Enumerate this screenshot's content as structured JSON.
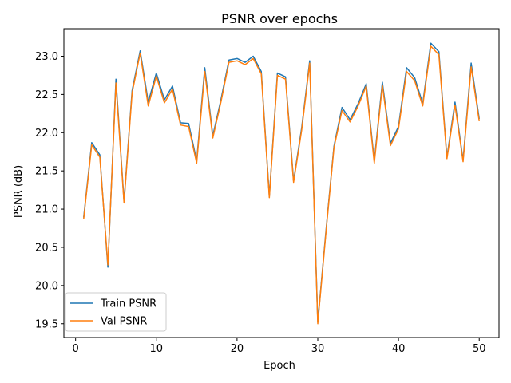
{
  "chart_data": {
    "type": "line",
    "title": "PSNR over epochs",
    "xlabel": "Epoch",
    "ylabel": "PSNR (dB)",
    "xlim": [
      -1.45,
      52.45
    ],
    "ylim": [
      19.32,
      23.36
    ],
    "xticks": [
      0,
      10,
      20,
      30,
      40,
      50
    ],
    "yticks": [
      19.5,
      20.0,
      20.5,
      21.0,
      21.5,
      22.0,
      22.5,
      23.0
    ],
    "ytick_labels": [
      "19.5",
      "20.0",
      "20.5",
      "21.0",
      "21.5",
      "22.0",
      "22.5",
      "23.0"
    ],
    "grid": false,
    "legend_position": "lower-left",
    "x": [
      1,
      2,
      3,
      4,
      5,
      6,
      7,
      8,
      9,
      10,
      11,
      12,
      13,
      14,
      15,
      16,
      17,
      18,
      19,
      20,
      21,
      22,
      23,
      24,
      25,
      26,
      27,
      28,
      29,
      30,
      31,
      32,
      33,
      34,
      35,
      36,
      37,
      38,
      39,
      40,
      41,
      42,
      43,
      44,
      45,
      46,
      47,
      48,
      49,
      50
    ],
    "series": [
      {
        "name": "Train PSNR",
        "color": "#1f77b4",
        "values": [
          20.89,
          21.87,
          21.71,
          20.24,
          22.7,
          21.1,
          22.55,
          23.07,
          22.4,
          22.78,
          22.43,
          22.61,
          22.13,
          22.12,
          21.63,
          22.85,
          21.96,
          22.43,
          22.95,
          22.97,
          22.92,
          23.0,
          22.8,
          21.17,
          22.78,
          22.73,
          21.37,
          22.06,
          22.94,
          19.52,
          20.7,
          21.82,
          22.33,
          22.17,
          22.38,
          22.64,
          21.63,
          22.66,
          21.86,
          22.08,
          22.85,
          22.72,
          22.38,
          23.17,
          23.06,
          21.68,
          22.4,
          21.64,
          22.91,
          22.18
        ]
      },
      {
        "name": "Val PSNR",
        "color": "#ff7f0e",
        "values": [
          20.87,
          21.84,
          21.68,
          20.27,
          22.65,
          21.08,
          22.52,
          23.04,
          22.35,
          22.74,
          22.39,
          22.57,
          22.1,
          22.08,
          21.6,
          22.8,
          21.93,
          22.4,
          22.92,
          22.94,
          22.89,
          22.97,
          22.77,
          21.15,
          22.75,
          22.7,
          21.35,
          22.03,
          22.91,
          19.5,
          20.68,
          21.8,
          22.29,
          22.14,
          22.35,
          22.61,
          21.6,
          22.62,
          21.83,
          22.05,
          22.8,
          22.68,
          22.35,
          23.13,
          23.02,
          21.66,
          22.36,
          21.62,
          22.86,
          22.15
        ]
      }
    ]
  }
}
